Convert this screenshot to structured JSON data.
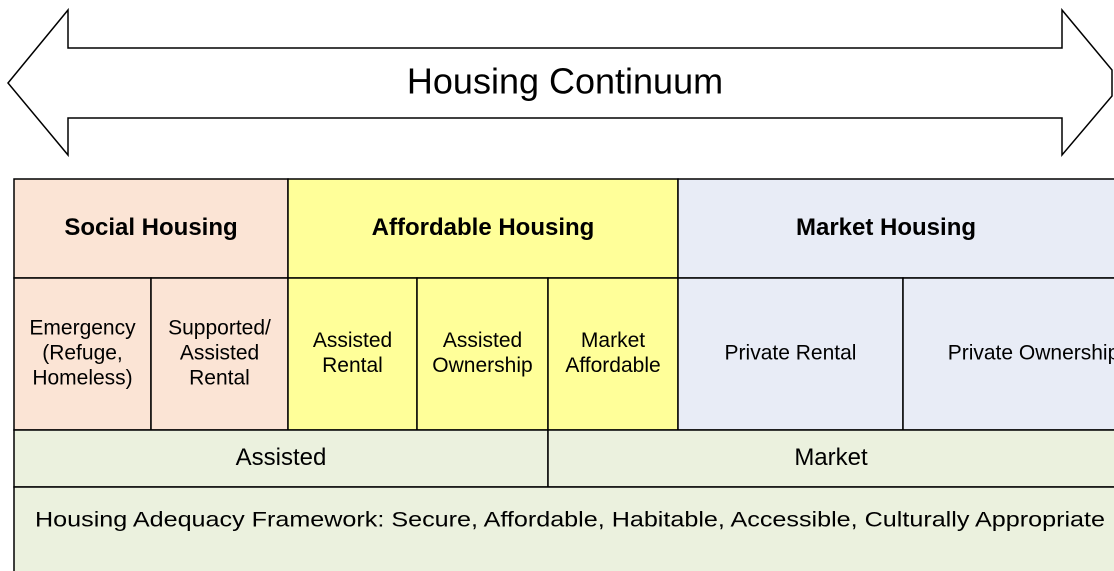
{
  "title": "Housing Continuum",
  "groups": [
    {
      "name": "Social Housing",
      "color": "#fbe4d5",
      "items": [
        {
          "lines": [
            "Emergency",
            "(Refuge,",
            "Homeless)"
          ]
        },
        {
          "lines": [
            "Supported/",
            "Assisted",
            "Rental"
          ]
        }
      ]
    },
    {
      "name": "Affordable Housing",
      "color": "#ffff99",
      "items": [
        {
          "lines": [
            "Assisted",
            "Rental"
          ]
        },
        {
          "lines": [
            "Assisted",
            "Ownership"
          ]
        },
        {
          "lines": [
            "Market",
            "Affordable"
          ]
        }
      ]
    },
    {
      "name": "Market Housing",
      "color": "#e8ecf6",
      "items": [
        {
          "lines": [
            "Private Rental"
          ]
        },
        {
          "lines": [
            "Private Ownership"
          ]
        }
      ]
    }
  ],
  "tenure": [
    "Assisted",
    "Market"
  ],
  "tenure_color": "#ebf1de",
  "framework": "Housing Adequacy Framework: Secure, Affordable, Habitable, Accessible, Culturally Appropriate"
}
